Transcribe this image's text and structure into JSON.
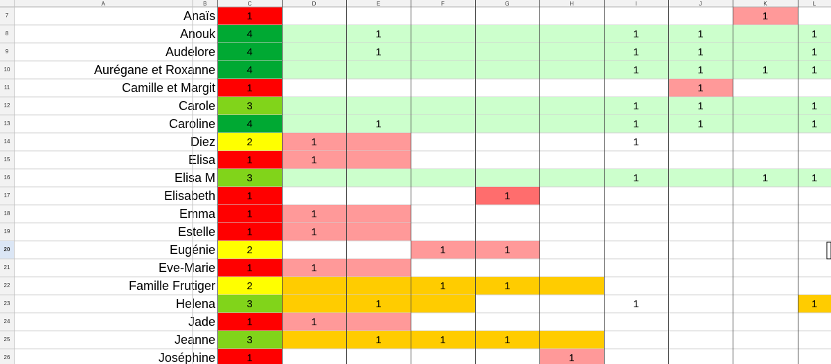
{
  "columns": [
    "A",
    "B",
    "C",
    "D",
    "E",
    "F",
    "G",
    "H",
    "I",
    "J",
    "K",
    "L"
  ],
  "rows": [
    {
      "num": 7,
      "name": "Anaïs",
      "score": 1,
      "cells": [
        null,
        null,
        null,
        null,
        null,
        null,
        null,
        1,
        null
      ],
      "fills": [
        "#ff0000",
        null,
        null,
        null,
        null,
        null,
        null,
        null,
        "#ff9999",
        null
      ]
    },
    {
      "num": 8,
      "name": "Anouk",
      "score": 4,
      "cells": [
        null,
        1,
        null,
        null,
        null,
        1,
        1,
        null,
        1
      ],
      "fills": [
        "#00a933",
        "#ccffcc",
        "#ccffcc",
        "#ccffcc",
        "#ccffcc",
        "#ccffcc",
        "#ccffcc",
        "#ccffcc",
        "#ccffcc",
        "#ccffcc"
      ]
    },
    {
      "num": 9,
      "name": "Audelore",
      "score": 4,
      "cells": [
        null,
        1,
        null,
        null,
        null,
        1,
        1,
        null,
        1
      ],
      "fills": [
        "#00a933",
        "#ccffcc",
        "#ccffcc",
        "#ccffcc",
        "#ccffcc",
        "#ccffcc",
        "#ccffcc",
        "#ccffcc",
        "#ccffcc",
        "#ccffcc"
      ]
    },
    {
      "num": 10,
      "name": "Aurégane et Roxanne",
      "score": 4,
      "cells": [
        null,
        null,
        null,
        null,
        null,
        1,
        1,
        1,
        1
      ],
      "fills": [
        "#00a933",
        "#ccffcc",
        "#ccffcc",
        "#ccffcc",
        "#ccffcc",
        "#ccffcc",
        "#ccffcc",
        "#ccffcc",
        "#ccffcc",
        "#ccffcc"
      ]
    },
    {
      "num": 11,
      "name": "Camille et Margit",
      "score": 1,
      "cells": [
        null,
        null,
        null,
        null,
        null,
        null,
        1,
        null,
        null
      ],
      "fills": [
        "#ff0000",
        null,
        null,
        null,
        null,
        null,
        null,
        "#ff9999",
        null,
        null
      ]
    },
    {
      "num": 12,
      "name": "Carole",
      "score": 3,
      "cells": [
        null,
        null,
        null,
        null,
        null,
        1,
        1,
        null,
        1
      ],
      "fills": [
        "#81d41a",
        "#ccffcc",
        "#ccffcc",
        "#ccffcc",
        "#ccffcc",
        "#ccffcc",
        "#ccffcc",
        "#ccffcc",
        "#ccffcc",
        "#ccffcc"
      ]
    },
    {
      "num": 13,
      "name": "Caroline",
      "score": 4,
      "cells": [
        null,
        1,
        null,
        null,
        null,
        1,
        1,
        null,
        1
      ],
      "fills": [
        "#00a933",
        "#ccffcc",
        "#ccffcc",
        "#ccffcc",
        "#ccffcc",
        "#ccffcc",
        "#ccffcc",
        "#ccffcc",
        "#ccffcc",
        "#ccffcc"
      ]
    },
    {
      "num": 14,
      "name": "Diez",
      "score": 2,
      "cells": [
        1,
        null,
        null,
        null,
        null,
        1,
        null,
        null,
        null
      ],
      "fills": [
        "#ffff00",
        "#ff9999",
        "#ff9999",
        null,
        null,
        null,
        null,
        null,
        null,
        null
      ]
    },
    {
      "num": 15,
      "name": "Elisa",
      "score": 1,
      "cells": [
        1,
        null,
        null,
        null,
        null,
        null,
        null,
        null,
        null
      ],
      "fills": [
        "#ff0000",
        "#ff9999",
        "#ff9999",
        null,
        null,
        null,
        null,
        null,
        null,
        null
      ]
    },
    {
      "num": 16,
      "name": "Elisa M",
      "score": 3,
      "cells": [
        null,
        null,
        null,
        null,
        null,
        1,
        null,
        1,
        1
      ],
      "fills": [
        "#81d41a",
        "#ccffcc",
        "#ccffcc",
        "#ccffcc",
        "#ccffcc",
        "#ccffcc",
        "#ccffcc",
        "#ccffcc",
        "#ccffcc",
        "#ccffcc"
      ]
    },
    {
      "num": 17,
      "name": "Elisabeth",
      "score": 1,
      "cells": [
        null,
        null,
        null,
        1,
        null,
        null,
        null,
        null,
        null
      ],
      "fills": [
        "#ff0000",
        null,
        null,
        null,
        "#ff6d6d",
        null,
        null,
        null,
        null,
        null
      ]
    },
    {
      "num": 18,
      "name": "Emma",
      "score": 1,
      "cells": [
        1,
        null,
        null,
        null,
        null,
        null,
        null,
        null,
        null
      ],
      "fills": [
        "#ff0000",
        "#ff9999",
        "#ff9999",
        null,
        null,
        null,
        null,
        null,
        null,
        null
      ]
    },
    {
      "num": 19,
      "name": "Estelle",
      "score": 1,
      "cells": [
        1,
        null,
        null,
        null,
        null,
        null,
        null,
        null,
        null
      ],
      "fills": [
        "#ff0000",
        "#ff9999",
        "#ff9999",
        null,
        null,
        null,
        null,
        null,
        null,
        null
      ]
    },
    {
      "num": 20,
      "name": "Eugénie",
      "score": 2,
      "active": true,
      "cells": [
        null,
        null,
        1,
        1,
        null,
        null,
        null,
        null,
        null
      ],
      "fills": [
        "#ffff00",
        null,
        null,
        "#ff9999",
        "#ff9999",
        null,
        null,
        null,
        null,
        null
      ]
    },
    {
      "num": 21,
      "name": "Eve-Marie",
      "score": 1,
      "cells": [
        1,
        null,
        null,
        null,
        null,
        null,
        null,
        null,
        null
      ],
      "fills": [
        "#ff0000",
        "#ff9999",
        "#ff9999",
        null,
        null,
        null,
        null,
        null,
        null,
        null
      ]
    },
    {
      "num": 22,
      "name": "Famille Frutiger",
      "score": 2,
      "cells": [
        null,
        null,
        1,
        1,
        null,
        null,
        null,
        null,
        null
      ],
      "fills": [
        "#ffff00",
        "#ffcc00",
        "#ffcc00",
        "#ffcc00",
        "#ffcc00",
        "#ffcc00",
        null,
        null,
        null,
        null
      ]
    },
    {
      "num": 23,
      "name": "Helena",
      "score": 3,
      "cells": [
        null,
        1,
        null,
        null,
        null,
        1,
        null,
        null,
        1
      ],
      "fills": [
        "#81d41a",
        "#ffcc00",
        "#ffcc00",
        "#ffcc00",
        null,
        null,
        null,
        null,
        null,
        "#ffcc00"
      ]
    },
    {
      "num": 24,
      "name": "Jade",
      "score": 1,
      "cells": [
        1,
        null,
        null,
        null,
        null,
        null,
        null,
        null,
        null
      ],
      "fills": [
        "#ff0000",
        "#ff9999",
        "#ff9999",
        null,
        null,
        null,
        null,
        null,
        null,
        null
      ]
    },
    {
      "num": 25,
      "name": "Jeanne",
      "score": 3,
      "cells": [
        null,
        1,
        1,
        1,
        null,
        null,
        null,
        null,
        null
      ],
      "fills": [
        "#81d41a",
        "#ffcc00",
        "#ffcc00",
        "#ffcc00",
        "#ffcc00",
        "#ffcc00",
        null,
        null,
        null,
        null
      ]
    },
    {
      "num": 26,
      "name": "Joséphine",
      "score": 1,
      "cells": [
        null,
        null,
        null,
        null,
        1,
        null,
        null,
        null,
        null
      ],
      "fills": [
        "#ff0000",
        null,
        null,
        null,
        null,
        "#ff9999",
        null,
        null,
        null,
        null
      ]
    }
  ]
}
